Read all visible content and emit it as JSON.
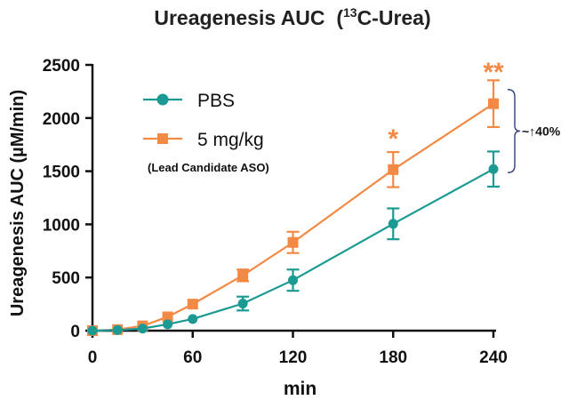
{
  "chart_data": {
    "type": "line",
    "title_main": "Ureagenesis AUC",
    "title_paren_open": "(",
    "title_isotope": "13",
    "title_suffix": "C-Urea)",
    "xlabel": "min",
    "ylabel": "Ureagenesis AUC (µM/min)",
    "x": [
      0,
      15,
      30,
      45,
      60,
      90,
      120,
      180,
      240
    ],
    "xticks": [
      0,
      60,
      120,
      180,
      240
    ],
    "xtick_labels": [
      "0",
      "60",
      "120",
      "180",
      "240"
    ],
    "xlim": [
      0,
      240
    ],
    "yticks": [
      0,
      500,
      1000,
      1500,
      2000,
      2500
    ],
    "ytick_labels": [
      "0",
      "500",
      "1000",
      "1500",
      "2000",
      "2500"
    ],
    "ylim": [
      0,
      2500
    ],
    "grid": false,
    "legend_position": "top-left",
    "series": [
      {
        "name": "PBS",
        "marker": "circle",
        "color": "#1a9a93",
        "values": [
          0,
          5,
          20,
          60,
          110,
          255,
          475,
          1005,
          1520
        ],
        "errors": [
          0,
          0,
          0,
          0,
          0,
          65,
          100,
          145,
          165
        ]
      },
      {
        "name": "5 mg/kg",
        "sublabel": "(Lead Candidate ASO)",
        "marker": "square",
        "color": "#f28a45",
        "values": [
          0,
          10,
          45,
          130,
          250,
          520,
          830,
          1515,
          2135
        ],
        "errors": [
          0,
          0,
          0,
          0,
          0,
          55,
          100,
          165,
          220
        ]
      }
    ],
    "annotations": {
      "sig_180": "*",
      "sig_240": "**",
      "bracket_label": "~↑40%"
    }
  }
}
